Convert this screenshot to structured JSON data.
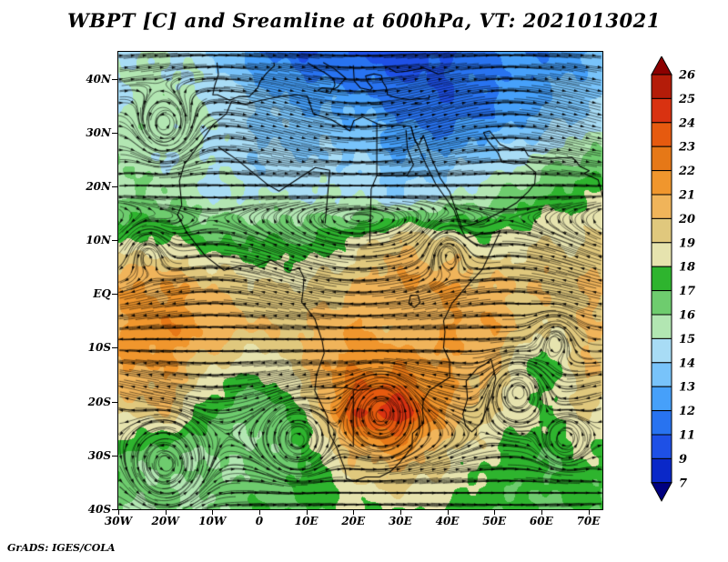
{
  "title": "WBPT [C] and Sreamline at 600hPa, VT: 2021013021",
  "credit": "GrADS: IGES/COLA",
  "chart_data": {
    "type": "heatmap",
    "title": "WBPT [C] and Sreamline at 600hPa, VT: 2021013021",
    "variable": "WBPT [C]",
    "overlay": "Streamline",
    "level": "600hPa",
    "valid_time": "2021013021",
    "xlabel": "",
    "ylabel": "",
    "lon_range": [
      -30,
      73
    ],
    "lat_range": [
      -40,
      45
    ],
    "x_ticks": {
      "labels": [
        "30W",
        "20W",
        "10W",
        "0",
        "10E",
        "20E",
        "30E",
        "40E",
        "50E",
        "60E",
        "70E"
      ],
      "lons": [
        -30,
        -20,
        -10,
        0,
        10,
        20,
        30,
        40,
        50,
        60,
        70
      ]
    },
    "y_ticks": {
      "labels": [
        "40N",
        "30N",
        "20N",
        "10N",
        "EQ",
        "10S",
        "20S",
        "30S",
        "40S"
      ],
      "lats": [
        40,
        30,
        20,
        10,
        0,
        -10,
        -20,
        -30,
        -40
      ]
    },
    "colorbar": {
      "levels": [
        7,
        9,
        11,
        12,
        13,
        14,
        15,
        16,
        17,
        18,
        19,
        20,
        21,
        22,
        23,
        24,
        25,
        26
      ],
      "band_colors": [
        "#000080",
        "#0a28c8",
        "#1e50e6",
        "#2873f0",
        "#46a0fa",
        "#78c3fa",
        "#a8dcf5",
        "#b2e6b2",
        "#6ecc6e",
        "#2eb42e",
        "#e6e3ae",
        "#e0c87d",
        "#f0b45a",
        "#f0962d",
        "#e67817",
        "#e65a0f",
        "#d93211",
        "#b41c09",
        "#8c0000"
      ]
    },
    "grid": {
      "lons": [
        -30,
        -20,
        -10,
        0,
        10,
        20,
        30,
        40,
        50,
        60,
        70,
        73
      ],
      "lats": [
        -40,
        -30,
        -22,
        -14,
        -6,
        2,
        10,
        18,
        26,
        34,
        45
      ],
      "values": [
        [
          16,
          16,
          16,
          17,
          17,
          18,
          18,
          18,
          17,
          17,
          17,
          17
        ],
        [
          17,
          16,
          16,
          16,
          17,
          20,
          21,
          19,
          18,
          17,
          18,
          18
        ],
        [
          19,
          20,
          17,
          16,
          18,
          24,
          25,
          21,
          19,
          18,
          19,
          19
        ],
        [
          21,
          21,
          19,
          18,
          20,
          22,
          22,
          21,
          20,
          17,
          20,
          20
        ],
        [
          21,
          22,
          21,
          20,
          20,
          21,
          20,
          21,
          21,
          19,
          20,
          20
        ],
        [
          21,
          21,
          20,
          19,
          19,
          20,
          21,
          21,
          20,
          20,
          20,
          20
        ],
        [
          18,
          18,
          17,
          17,
          17,
          18,
          20,
          19,
          18,
          19,
          19,
          19
        ],
        [
          16,
          16,
          15,
          15,
          15,
          15,
          14,
          15,
          16,
          17,
          18,
          18
        ],
        [
          16,
          15,
          15,
          14,
          14,
          14,
          13,
          13,
          14,
          15,
          16,
          16
        ],
        [
          15,
          16,
          15,
          14,
          13,
          13,
          12,
          11,
          12,
          13,
          14,
          14
        ],
        [
          15,
          15,
          14,
          12,
          11,
          11,
          10,
          11,
          12,
          12,
          13,
          13
        ]
      ]
    },
    "vortices": [
      {
        "lon": -20,
        "lat": 31,
        "s": 1.6,
        "r": 5
      },
      {
        "lon": -20,
        "lat": -32,
        "s": 2.2,
        "r": 6
      },
      {
        "lon": 26,
        "lat": -22,
        "s": 2.0,
        "r": 5
      },
      {
        "lon": 55,
        "lat": -18,
        "s": 1.6,
        "r": 5
      },
      {
        "lon": 65,
        "lat": -27,
        "s": 1.2,
        "r": 4
      },
      {
        "lon": 8,
        "lat": -27,
        "s": 1.3,
        "r": 5
      },
      {
        "lon": 40,
        "lat": 8,
        "s": 0.8,
        "r": 4
      },
      {
        "lon": 63,
        "lat": -8,
        "s": 1.0,
        "r": 4
      },
      {
        "lon": -24,
        "lat": 8,
        "s": 0.7,
        "r": 4
      }
    ]
  }
}
